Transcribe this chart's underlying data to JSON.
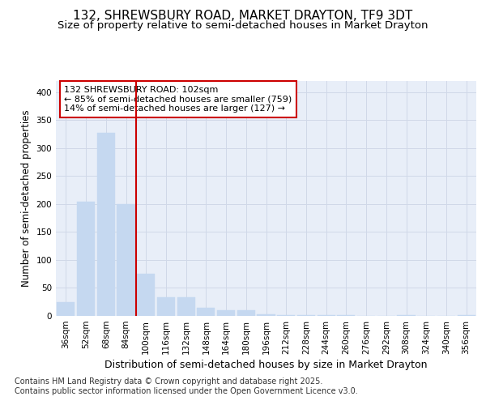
{
  "title": "132, SHREWSBURY ROAD, MARKET DRAYTON, TF9 3DT",
  "subtitle": "Size of property relative to semi-detached houses in Market Drayton",
  "xlabel": "Distribution of semi-detached houses by size in Market Drayton",
  "ylabel": "Number of semi-detached properties",
  "footer_line1": "Contains HM Land Registry data © Crown copyright and database right 2025.",
  "footer_line2": "Contains public sector information licensed under the Open Government Licence v3.0.",
  "bar_labels": [
    "36sqm",
    "52sqm",
    "68sqm",
    "84sqm",
    "100sqm",
    "116sqm",
    "132sqm",
    "148sqm",
    "164sqm",
    "180sqm",
    "196sqm",
    "212sqm",
    "228sqm",
    "244sqm",
    "260sqm",
    "276sqm",
    "292sqm",
    "308sqm",
    "324sqm",
    "340sqm",
    "356sqm"
  ],
  "bar_values": [
    25,
    204,
    328,
    200,
    75,
    33,
    33,
    15,
    10,
    10,
    3,
    1,
    1,
    2,
    1,
    0,
    0,
    1,
    0,
    0,
    2
  ],
  "bar_color": "#c5d8f0",
  "bar_edgecolor": "#c5d8f0",
  "grid_color": "#d0d8e8",
  "background_color": "#e8eef8",
  "vline_color": "#cc0000",
  "annotation_text": "132 SHREWSBURY ROAD: 102sqm\n← 85% of semi-detached houses are smaller (759)\n14% of semi-detached houses are larger (127) →",
  "annotation_box_color": "#ffffff",
  "annotation_box_edgecolor": "#cc0000",
  "ylim": [
    0,
    420
  ],
  "yticks": [
    0,
    50,
    100,
    150,
    200,
    250,
    300,
    350,
    400
  ],
  "title_fontsize": 11,
  "subtitle_fontsize": 9.5,
  "xlabel_fontsize": 9,
  "ylabel_fontsize": 8.5,
  "tick_fontsize": 7.5,
  "annotation_fontsize": 8,
  "footer_fontsize": 7
}
